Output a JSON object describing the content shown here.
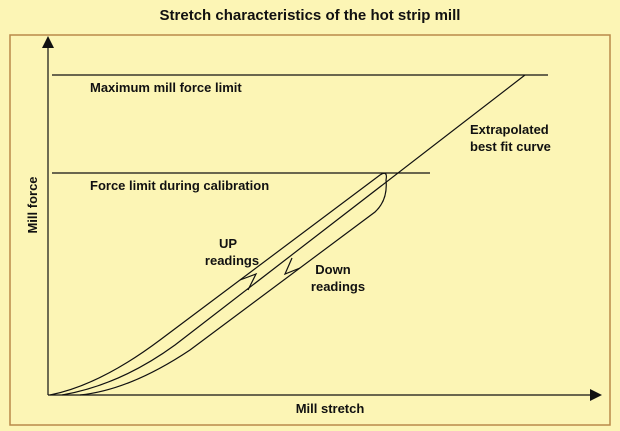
{
  "title": "Stretch characteristics of the hot strip mill",
  "axes": {
    "x_label": "Mill stretch",
    "y_label": "Mill force"
  },
  "limits": {
    "maximum": "Maximum mill force limit",
    "calibration": "Force limit during calibration"
  },
  "curves": {
    "extrapolated": [
      "Extrapolated",
      "best fit curve"
    ],
    "up": [
      "UP",
      "readings"
    ],
    "down": [
      "Down",
      "readings"
    ]
  }
}
